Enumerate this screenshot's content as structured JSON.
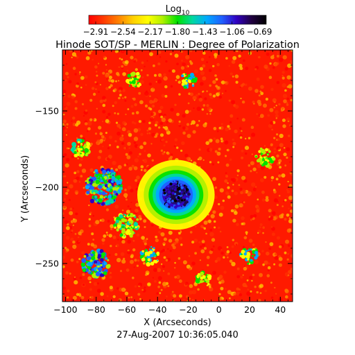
{
  "colorbar": {
    "label_base": "Log",
    "label_sub": "10",
    "ticks": [
      "-2.91",
      "-2.54",
      "-2.17",
      "-1.80",
      "-1.43",
      "-1.06",
      "-0.69"
    ],
    "colors": [
      "#ff0000",
      "#ff3a00",
      "#ff8000",
      "#ffd000",
      "#ffff00",
      "#b0f000",
      "#00e000",
      "#00d8a0",
      "#00a8ff",
      "#2060ff",
      "#3000c0",
      "#200040",
      "#000000"
    ]
  },
  "title": "Hinode SOT/SP - MERLIN : Degree of Polarization",
  "axes": {
    "xlabel": "X (Arcseconds)",
    "ylabel": "Y (Arcseconds)",
    "xticks": [
      -100,
      -80,
      -60,
      -40,
      -20,
      0,
      20,
      40
    ],
    "yticks": [
      -150,
      -200,
      -250
    ],
    "xlim": [
      -102,
      48
    ],
    "ylim": [
      -275,
      -110
    ]
  },
  "timestamp": "27-Aug-2007 10:36:05.040"
}
